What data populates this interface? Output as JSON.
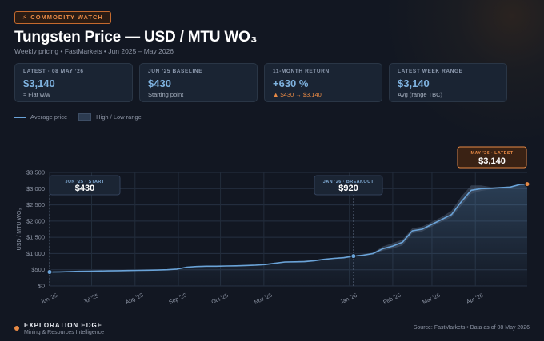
{
  "badge": {
    "icon": "lightning-icon",
    "text": "COMMODITY WATCH"
  },
  "title": "Tungsten Price — USD / MTU WO₃",
  "subtitle": "Weekly pricing • FastMarkets • Jun 2025 – May 2026",
  "cards": [
    {
      "label": "LATEST · 08 MAY ’26",
      "value": "$3,140",
      "sub": "≈ Flat w/w"
    },
    {
      "label": "JUN ’25 BASELINE",
      "value": "$430",
      "sub": "Starting point"
    },
    {
      "label": "11-MONTH RETURN",
      "value": "+630 %",
      "sub": "▲ $430 → $3,140"
    },
    {
      "label": "LATEST WEEK RANGE",
      "value": "$3,140",
      "sub": "Avg (range TBC)"
    }
  ],
  "legend": {
    "line": "Average price",
    "band": "High / Low range"
  },
  "footer": {
    "brand": "EXPLORATION EDGE",
    "brand_sub": "Mining & Resources Intelligence",
    "source": "Source: FastMarkets • Data as of 08 May 2026"
  },
  "colors": {
    "line": "#6aa3d8",
    "accent": "#e88a45",
    "band": "#2c3b50"
  },
  "chart_data": {
    "type": "line",
    "xlabel": "",
    "ylabel": "USD / MTU WO₃",
    "ylim": [
      0,
      3500
    ],
    "yticks": [
      0,
      500,
      1000,
      1500,
      2000,
      2500,
      3000,
      3500
    ],
    "ytick_labels": [
      "$0",
      "$500",
      "$1,000",
      "$1,500",
      "$2,000",
      "$2,500",
      "$3,000",
      "$3,500"
    ],
    "x_range": [
      "2025-06-01",
      "2026-05-08"
    ],
    "xticks": [
      "2025-06-01",
      "2025-07-01",
      "2025-08-01",
      "2025-09-01",
      "2025-10-01",
      "2025-11-01",
      "2026-01-01",
      "2026-02-01",
      "2026-03-01",
      "2026-04-01"
    ],
    "xtick_labels": [
      "Jun '25",
      "Jul '25",
      "Aug '25",
      "Sep '25",
      "Oct '25",
      "Nov '25",
      "Jan '26",
      "Feb '26",
      "Mar '26",
      "Apr '26"
    ],
    "grid": true,
    "legend_position": "top-left",
    "series": [
      {
        "name": "Average price",
        "points": [
          [
            "2025-06-01",
            430
          ],
          [
            "2025-06-08",
            435
          ],
          [
            "2025-06-15",
            440
          ],
          [
            "2025-06-22",
            450
          ],
          [
            "2025-06-29",
            455
          ],
          [
            "2025-07-06",
            460
          ],
          [
            "2025-07-13",
            465
          ],
          [
            "2025-07-20",
            470
          ],
          [
            "2025-07-27",
            475
          ],
          [
            "2025-08-03",
            480
          ],
          [
            "2025-08-10",
            485
          ],
          [
            "2025-08-17",
            490
          ],
          [
            "2025-08-24",
            500
          ],
          [
            "2025-08-31",
            520
          ],
          [
            "2025-09-07",
            580
          ],
          [
            "2025-09-14",
            600
          ],
          [
            "2025-09-21",
            610
          ],
          [
            "2025-09-28",
            610
          ],
          [
            "2025-10-05",
            615
          ],
          [
            "2025-10-12",
            620
          ],
          [
            "2025-10-19",
            630
          ],
          [
            "2025-10-26",
            640
          ],
          [
            "2025-11-02",
            660
          ],
          [
            "2025-11-09",
            700
          ],
          [
            "2025-11-16",
            740
          ],
          [
            "2025-11-23",
            745
          ],
          [
            "2025-11-30",
            750
          ],
          [
            "2025-12-07",
            780
          ],
          [
            "2025-12-14",
            820
          ],
          [
            "2025-12-21",
            850
          ],
          [
            "2025-12-28",
            870
          ],
          [
            "2026-01-04",
            920
          ],
          [
            "2026-01-11",
            950
          ],
          [
            "2026-01-18",
            1000
          ],
          [
            "2026-01-25",
            1150
          ],
          [
            "2026-02-01",
            1230
          ],
          [
            "2026-02-08",
            1350
          ],
          [
            "2026-02-15",
            1700
          ],
          [
            "2026-02-22",
            1750
          ],
          [
            "2026-03-01",
            1900
          ],
          [
            "2026-03-08",
            2050
          ],
          [
            "2026-03-15",
            2200
          ],
          [
            "2026-03-22",
            2600
          ],
          [
            "2026-03-29",
            2950
          ],
          [
            "2026-04-05",
            3000
          ],
          [
            "2026-04-12",
            3010
          ],
          [
            "2026-04-19",
            3030
          ],
          [
            "2026-04-26",
            3050
          ],
          [
            "2026-05-03",
            3130
          ],
          [
            "2026-05-08",
            3140
          ]
        ]
      },
      {
        "name": "High / Low range",
        "band": [
          [
            "2025-08-31",
            520,
            520
          ],
          [
            "2025-09-14",
            590,
            615
          ],
          [
            "2025-10-12",
            610,
            630
          ],
          [
            "2025-11-09",
            690,
            710
          ],
          [
            "2025-12-14",
            810,
            830
          ],
          [
            "2026-01-04",
            910,
            935
          ],
          [
            "2026-01-18",
            980,
            1030
          ],
          [
            "2026-01-25",
            1090,
            1220
          ],
          [
            "2026-02-01",
            1150,
            1320
          ],
          [
            "2026-02-08",
            1250,
            1430
          ],
          [
            "2026-02-15",
            1620,
            1780
          ],
          [
            "2026-02-22",
            1680,
            1830
          ],
          [
            "2026-03-01",
            1830,
            1980
          ],
          [
            "2026-03-08",
            1980,
            2130
          ],
          [
            "2026-03-15",
            2120,
            2320
          ],
          [
            "2026-03-22",
            2480,
            2760
          ],
          [
            "2026-03-29",
            2840,
            3100
          ],
          [
            "2026-04-05",
            2930,
            3100
          ],
          [
            "2026-04-12",
            2980,
            3050
          ],
          [
            "2026-04-26",
            3040,
            3060
          ],
          [
            "2026-05-08",
            3140,
            3140
          ]
        ]
      }
    ],
    "annotations": [
      {
        "date": "2025-06-01",
        "label": "JUN ’25 · START",
        "value": "$430",
        "y": 430
      },
      {
        "date": "2026-01-04",
        "label": "JAN ’26 · BREAKOUT",
        "value": "$920",
        "y": 920
      },
      {
        "date": "2026-05-08",
        "label": "MAY ’26 · LATEST",
        "value": "$3,140",
        "y": 3140
      }
    ]
  }
}
